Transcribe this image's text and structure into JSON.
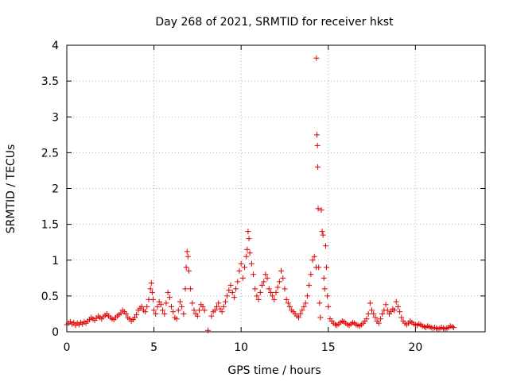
{
  "chart_data": {
    "type": "scatter",
    "title": "Day 268 of 2021, SRMTID for receiver hkst",
    "xlabel": "GPS time / hours",
    "ylabel": "SRMTID / TECUs",
    "xlim": [
      0,
      24
    ],
    "ylim": [
      0,
      4
    ],
    "xticks": [
      0,
      5,
      10,
      15,
      20
    ],
    "yticks": [
      0,
      0.5,
      1,
      1.5,
      2,
      2.5,
      3,
      3.5,
      4
    ],
    "xtick_labels": [
      "0",
      "5",
      "10",
      "15",
      "20"
    ],
    "ytick_labels": [
      "0",
      "0.5",
      "1",
      "1.5",
      "2",
      "2.5",
      "3",
      "3.5",
      "4"
    ],
    "grid": true,
    "marker": "+",
    "color": "#e00000",
    "series": [
      {
        "name": "SRMTID",
        "x": [
          0.0,
          0.1,
          0.2,
          0.3,
          0.4,
          0.5,
          0.6,
          0.7,
          0.8,
          0.9,
          1.0,
          1.1,
          1.2,
          1.3,
          1.4,
          1.5,
          1.6,
          1.7,
          1.8,
          1.9,
          2.0,
          2.1,
          2.2,
          2.3,
          2.4,
          2.5,
          2.6,
          2.7,
          2.8,
          2.9,
          3.0,
          3.1,
          3.2,
          3.3,
          3.4,
          3.5,
          3.6,
          3.7,
          3.8,
          3.9,
          4.0,
          4.1,
          4.2,
          4.3,
          4.4,
          4.5,
          4.6,
          4.7,
          4.8,
          4.85,
          4.9,
          4.95,
          5.0,
          5.1,
          5.2,
          5.3,
          5.4,
          5.5,
          5.6,
          5.7,
          5.8,
          5.9,
          6.0,
          6.1,
          6.2,
          6.3,
          6.4,
          6.5,
          6.6,
          6.7,
          6.8,
          6.85,
          6.9,
          6.95,
          7.0,
          7.1,
          7.2,
          7.3,
          7.4,
          7.5,
          7.6,
          7.7,
          7.8,
          7.9,
          8.1,
          8.3,
          8.4,
          8.5,
          8.6,
          8.7,
          8.8,
          8.9,
          9.0,
          9.1,
          9.2,
          9.3,
          9.4,
          9.5,
          9.6,
          9.7,
          9.8,
          9.9,
          10.0,
          10.1,
          10.2,
          10.3,
          10.35,
          10.4,
          10.45,
          10.5,
          10.6,
          10.7,
          10.8,
          10.9,
          11.0,
          11.1,
          11.2,
          11.3,
          11.4,
          11.5,
          11.6,
          11.7,
          11.8,
          11.9,
          12.0,
          12.1,
          12.2,
          12.3,
          12.4,
          12.5,
          12.6,
          12.7,
          12.8,
          12.9,
          13.0,
          13.1,
          13.2,
          13.3,
          13.4,
          13.5,
          13.6,
          13.7,
          13.8,
          13.9,
          14.0,
          14.1,
          14.2,
          14.3,
          14.32,
          14.35,
          14.38,
          14.4,
          14.42,
          14.45,
          14.5,
          14.55,
          14.6,
          14.65,
          14.7,
          14.75,
          14.8,
          14.85,
          14.9,
          14.95,
          15.0,
          15.1,
          15.2,
          15.3,
          15.4,
          15.5,
          15.6,
          15.7,
          15.8,
          15.9,
          16.0,
          16.1,
          16.2,
          16.3,
          16.4,
          16.5,
          16.6,
          16.7,
          16.8,
          16.9,
          17.0,
          17.1,
          17.2,
          17.3,
          17.4,
          17.5,
          17.6,
          17.7,
          17.8,
          17.9,
          18.0,
          18.1,
          18.2,
          18.3,
          18.4,
          18.5,
          18.6,
          18.7,
          18.8,
          18.9,
          19.0,
          19.1,
          19.2,
          19.3,
          19.4,
          19.5,
          19.6,
          19.7,
          19.8,
          19.9,
          20.0,
          20.1,
          20.2,
          20.3,
          20.4,
          20.5,
          20.6,
          20.7,
          20.8,
          20.9,
          21.0,
          21.1,
          21.2,
          21.3,
          21.4,
          21.5,
          21.6,
          21.7,
          21.8,
          21.9,
          22.0,
          22.1,
          22.2
        ],
        "y": [
          0.1,
          0.12,
          0.14,
          0.11,
          0.13,
          0.09,
          0.12,
          0.1,
          0.13,
          0.11,
          0.14,
          0.12,
          0.15,
          0.17,
          0.2,
          0.18,
          0.16,
          0.19,
          0.22,
          0.2,
          0.18,
          0.21,
          0.23,
          0.25,
          0.22,
          0.2,
          0.18,
          0.17,
          0.2,
          0.22,
          0.24,
          0.26,
          0.3,
          0.28,
          0.25,
          0.2,
          0.18,
          0.15,
          0.17,
          0.2,
          0.24,
          0.3,
          0.33,
          0.35,
          0.3,
          0.28,
          0.35,
          0.45,
          0.6,
          0.68,
          0.55,
          0.45,
          0.3,
          0.25,
          0.35,
          0.42,
          0.38,
          0.3,
          0.25,
          0.4,
          0.55,
          0.48,
          0.35,
          0.28,
          0.2,
          0.18,
          0.3,
          0.42,
          0.35,
          0.25,
          0.6,
          0.9,
          1.12,
          1.05,
          0.85,
          0.6,
          0.4,
          0.3,
          0.25,
          0.22,
          0.3,
          0.38,
          0.35,
          0.3,
          0.02,
          0.22,
          0.28,
          0.3,
          0.35,
          0.4,
          0.32,
          0.28,
          0.35,
          0.42,
          0.5,
          0.58,
          0.65,
          0.55,
          0.48,
          0.6,
          0.7,
          0.85,
          0.95,
          0.75,
          0.9,
          1.05,
          1.15,
          1.4,
          1.3,
          1.1,
          0.95,
          0.8,
          0.6,
          0.5,
          0.45,
          0.55,
          0.65,
          0.7,
          0.8,
          0.75,
          0.6,
          0.55,
          0.5,
          0.45,
          0.55,
          0.62,
          0.7,
          0.85,
          0.75,
          0.6,
          0.45,
          0.4,
          0.35,
          0.3,
          0.28,
          0.25,
          0.22,
          0.2,
          0.25,
          0.3,
          0.35,
          0.4,
          0.5,
          0.65,
          0.8,
          1.0,
          1.05,
          0.9,
          3.82,
          2.75,
          2.6,
          2.3,
          1.72,
          0.9,
          0.4,
          0.2,
          1.7,
          1.4,
          1.35,
          0.75,
          0.6,
          1.2,
          0.9,
          0.5,
          0.35,
          0.18,
          0.15,
          0.12,
          0.1,
          0.09,
          0.11,
          0.13,
          0.15,
          0.14,
          0.12,
          0.1,
          0.09,
          0.11,
          0.13,
          0.12,
          0.1,
          0.09,
          0.08,
          0.1,
          0.12,
          0.15,
          0.18,
          0.25,
          0.4,
          0.3,
          0.25,
          0.2,
          0.15,
          0.12,
          0.18,
          0.25,
          0.3,
          0.38,
          0.3,
          0.25,
          0.28,
          0.32,
          0.3,
          0.42,
          0.35,
          0.28,
          0.2,
          0.15,
          0.12,
          0.1,
          0.12,
          0.15,
          0.13,
          0.11,
          0.1,
          0.09,
          0.11,
          0.1,
          0.08,
          0.07,
          0.06,
          0.08,
          0.07,
          0.06,
          0.05,
          0.06,
          0.05,
          0.04,
          0.05,
          0.06,
          0.05,
          0.04,
          0.05,
          0.06,
          0.08,
          0.07,
          0.06
        ]
      }
    ]
  }
}
